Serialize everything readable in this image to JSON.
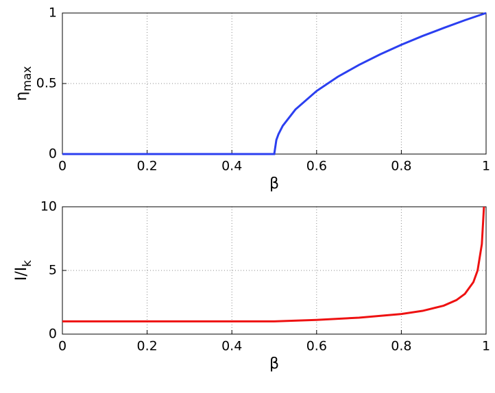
{
  "chart_data": [
    {
      "type": "line",
      "xlabel": "β",
      "ylabel": "η",
      "ylabel_sub": "max",
      "x": [
        0,
        0.5,
        0.505,
        0.51,
        0.52,
        0.55,
        0.6,
        0.65,
        0.7,
        0.75,
        0.8,
        0.85,
        0.9,
        0.95,
        1
      ],
      "series": [
        {
          "color": "#2b3ff0",
          "values": [
            0,
            0,
            0.1,
            0.141,
            0.2,
            0.316,
            0.447,
            0.548,
            0.632,
            0.707,
            0.775,
            0.837,
            0.894,
            0.949,
            1
          ]
        }
      ],
      "xlim": [
        0,
        1
      ],
      "xticks": [
        0,
        0.2,
        0.4,
        0.6,
        0.8,
        1
      ],
      "ylim": [
        0,
        1
      ],
      "yticks": [
        0,
        0.5,
        1
      ],
      "grid": true
    },
    {
      "type": "line",
      "xlabel": "β",
      "ylabel": "I/I",
      "ylabel_sub": "k",
      "x": [
        0,
        0.5,
        0.6,
        0.7,
        0.8,
        0.85,
        0.9,
        0.93,
        0.95,
        0.97,
        0.98,
        0.99,
        0.995
      ],
      "series": [
        {
          "color": "#ee1111",
          "values": [
            1,
            1,
            1.118,
            1.291,
            1.581,
            1.826,
            2.236,
            2.673,
            3.162,
            4.082,
            5,
            7.071,
            10
          ]
        }
      ],
      "xlim": [
        0,
        1
      ],
      "xticks": [
        0,
        0.2,
        0.4,
        0.6,
        0.8,
        1
      ],
      "ylim": [
        0,
        10
      ],
      "yticks": [
        0,
        5,
        10
      ],
      "grid": true
    }
  ]
}
